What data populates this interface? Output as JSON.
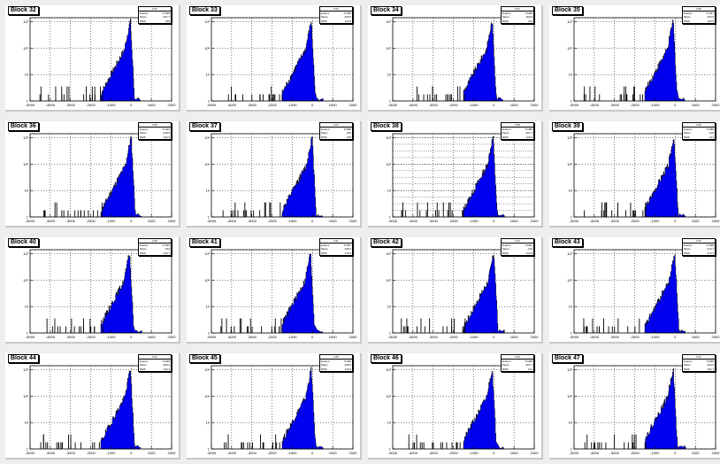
{
  "chart_data": [
    {
      "type": "histogram",
      "title": "Block 32",
      "stats": {
        "name": "h32",
        "entries": "37428",
        "mean": "-167.7",
        "rms": "168"
      }
    },
    {
      "type": "histogram",
      "title": "Block 33",
      "stats": {
        "name": "h33",
        "entries": "37469",
        "mean": "-169.5",
        "rms": "123.5"
      }
    },
    {
      "type": "histogram",
      "title": "Block 34",
      "stats": {
        "name": "h34",
        "entries": "37469",
        "mean": "-150.8",
        "rms": "144"
      }
    },
    {
      "type": "histogram",
      "title": "Block 35",
      "stats": {
        "name": "h35",
        "entries": "37457",
        "mean": "-153.6",
        "rms": "133.6"
      }
    },
    {
      "type": "histogram",
      "title": "Block 36",
      "stats": {
        "name": "h36",
        "entries": "37446",
        "mean": "-148.5",
        "rms": "126.6"
      }
    },
    {
      "type": "histogram",
      "title": "Block 37",
      "stats": {
        "name": "h37",
        "entries": "37480",
        "mean": "-183",
        "rms": "158"
      }
    },
    {
      "type": "histogram",
      "title": "Block 38",
      "stats": {
        "name": "h38",
        "entries": "37485",
        "mean": "-151.3",
        "rms": "133.9"
      }
    },
    {
      "type": "histogram",
      "title": "Block 39",
      "stats": {
        "name": "h39",
        "entries": "37488",
        "mean": "-148",
        "rms": "131"
      }
    },
    {
      "type": "histogram",
      "title": "Block 40",
      "stats": {
        "name": "h40",
        "entries": "37446",
        "mean": "-154",
        "rms": "140.7"
      }
    },
    {
      "type": "histogram",
      "title": "Block 41",
      "stats": {
        "name": "h41",
        "entries": "37467",
        "mean": "-195.2",
        "rms": "175.4"
      }
    },
    {
      "type": "histogram",
      "title": "Block 42",
      "stats": {
        "name": "h42",
        "entries": "37461",
        "mean": "-149",
        "rms": "134.8"
      }
    },
    {
      "type": "histogram",
      "title": "Block 43",
      "stats": {
        "name": "h43",
        "entries": "37458",
        "mean": "-173.7",
        "rms": "173.4"
      }
    },
    {
      "type": "histogram",
      "title": "Block 44",
      "stats": {
        "name": "h44",
        "entries": "37406",
        "mean": "-159.2",
        "rms": "133.4"
      }
    },
    {
      "type": "histogram",
      "title": "Block 45",
      "stats": {
        "name": "h45",
        "entries": "37469",
        "mean": "-168.6",
        "rms": "143.6"
      }
    },
    {
      "type": "histogram",
      "title": "Block 46",
      "stats": {
        "name": "h46",
        "entries": "37498",
        "mean": "-157.2",
        "rms": "141"
      }
    },
    {
      "type": "histogram",
      "title": "Block 47",
      "stats": {
        "name": "h47",
        "entries": "37468",
        "mean": "-164.6",
        "rms": "150.7"
      }
    }
  ],
  "axes": {
    "x_range": [
      -5000,
      2000
    ],
    "x_ticks": [
      "-5000",
      "-4000",
      "-3000",
      "-2000",
      "-1000",
      "0",
      "1000",
      "2000"
    ],
    "y_scale": "log",
    "y_ticks": [
      "1",
      "10",
      "10²",
      "10³"
    ],
    "grid": true
  },
  "stats_labels": {
    "entries": "Entries",
    "mean": "Mean",
    "rms": "RMS"
  },
  "colors": {
    "fill": "#0000ee",
    "background": "#eeeeee",
    "pad": "#ffffff",
    "line": "#000000"
  }
}
